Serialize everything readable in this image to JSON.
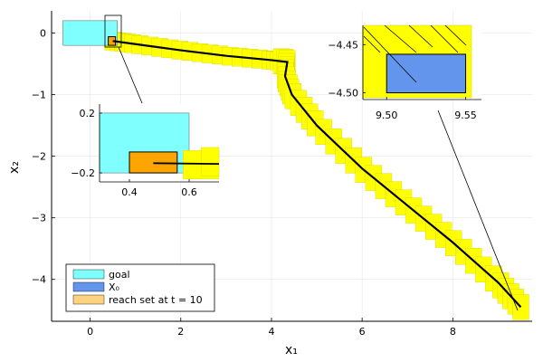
{
  "chart_data": {
    "type": "area",
    "title": "",
    "xlabel": "x₁",
    "ylabel": "x₂",
    "xlim": [
      -0.85,
      9.75
    ],
    "ylim": [
      -4.68,
      0.36
    ],
    "xticks": [
      "0",
      "2",
      "4",
      "6",
      "8"
    ],
    "xtick_values": [
      0,
      2,
      4,
      6,
      8
    ],
    "yticks": [
      "0",
      "−1",
      "−2",
      "−3",
      "−4"
    ],
    "ytick_values": [
      0,
      -1,
      -2,
      -3,
      -4
    ],
    "grid": true,
    "legend_position": "bottom-left",
    "colors": {
      "goal": "#80ffff",
      "x0": "#6495ed",
      "reach_set": "#ffd27f",
      "flowpipe": "#ffff00",
      "trajectory": "#000000"
    },
    "legend": [
      {
        "label": "goal",
        "color": "#80ffff"
      },
      {
        "label": "X₀",
        "color": "#6495ed"
      },
      {
        "label": "reach set at t = 10",
        "color": "#ffd27f"
      }
    ],
    "goal_box": {
      "x": [
        -0.6,
        0.6
      ],
      "y": [
        -0.2,
        0.2
      ]
    },
    "reach_set_box": {
      "x": [
        0.4,
        0.56
      ],
      "y": [
        -0.2,
        -0.06
      ]
    },
    "trajectory": [
      [
        0.5,
        -0.13
      ],
      [
        1.0,
        -0.18
      ],
      [
        2.0,
        -0.28
      ],
      [
        3.0,
        -0.37
      ],
      [
        4.0,
        -0.44
      ],
      [
        4.35,
        -0.47
      ],
      [
        4.3,
        -0.7
      ],
      [
        4.45,
        -1.0
      ],
      [
        5.0,
        -1.5
      ],
      [
        6.0,
        -2.2
      ],
      [
        7.0,
        -2.8
      ],
      [
        8.0,
        -3.4
      ],
      [
        9.0,
        -4.05
      ],
      [
        9.5,
        -4.45
      ]
    ],
    "insets": [
      {
        "xlim": [
          0.3,
          0.7
        ],
        "ylim": [
          -0.26,
          0.26
        ],
        "xticks": [
          "0.4",
          "0.6"
        ],
        "xtick_values": [
          0.4,
          0.6
        ],
        "yticks": [
          "0.2",
          "−0.2"
        ],
        "ytick_values": [
          0.2,
          -0.2
        ],
        "goal_box": {
          "x": [
            0.3,
            0.6
          ],
          "y": [
            -0.2,
            0.2
          ]
        },
        "reach_set_box": {
          "x": [
            0.4,
            0.56
          ],
          "y": [
            -0.2,
            -0.06
          ]
        },
        "trajectory": [
          [
            0.48,
            -0.135
          ],
          [
            0.7,
            -0.14
          ]
        ]
      },
      {
        "xlim": [
          9.485,
          9.56
        ],
        "ylim": [
          -4.507,
          -4.43
        ],
        "xticks": [
          "9.50",
          "9.55"
        ],
        "xtick_values": [
          9.5,
          9.55
        ],
        "yticks": [
          "−4.45",
          "−4.50"
        ],
        "ytick_values": [
          -4.45,
          -4.5
        ],
        "x0_box": {
          "x": [
            9.5,
            9.55
          ],
          "y": [
            -4.5,
            -4.46
          ]
        }
      }
    ]
  }
}
